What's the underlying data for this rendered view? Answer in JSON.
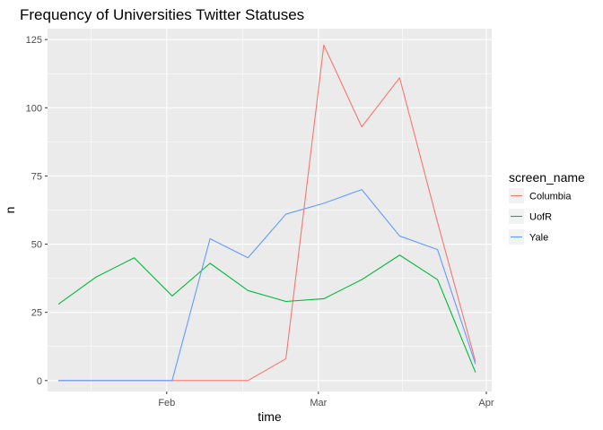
{
  "chart_data": {
    "type": "line",
    "title": "Frequency of Universities Twitter Statuses",
    "xlabel": "time",
    "ylabel": "n",
    "x": [
      "2018-01-12",
      "2018-01-19",
      "2018-01-26",
      "2018-02-02",
      "2018-02-09",
      "2018-02-16",
      "2018-02-23",
      "2018-03-02",
      "2018-03-09",
      "2018-03-16",
      "2018-03-23",
      "2018-03-30"
    ],
    "xlim": [
      "2018-01-10",
      "2018-04-02"
    ],
    "x_ticks": [
      {
        "label": "Feb",
        "date": "2018-02-01"
      },
      {
        "label": "Mar",
        "date": "2018-03-01"
      },
      {
        "label": "Apr",
        "date": "2018-04-01"
      }
    ],
    "ylim": [
      -4,
      129
    ],
    "y_ticks": [
      0,
      25,
      50,
      75,
      100,
      125
    ],
    "grid": true,
    "legend_position": "right",
    "legend_title": "screen_name",
    "series": [
      {
        "name": "Columbia",
        "color": "#F8766D",
        "values": [
          0,
          0,
          0,
          0,
          0,
          0,
          8,
          123,
          93,
          111,
          58,
          7
        ]
      },
      {
        "name": "UofR",
        "color": "#00BA38",
        "values": [
          28,
          38,
          45,
          31,
          43,
          33,
          29,
          30,
          37,
          46,
          37,
          3
        ]
      },
      {
        "name": "Yale",
        "color": "#619CFF",
        "values": [
          0,
          0,
          0,
          0,
          52,
          45,
          61,
          65,
          70,
          53,
          48,
          6
        ]
      }
    ]
  }
}
